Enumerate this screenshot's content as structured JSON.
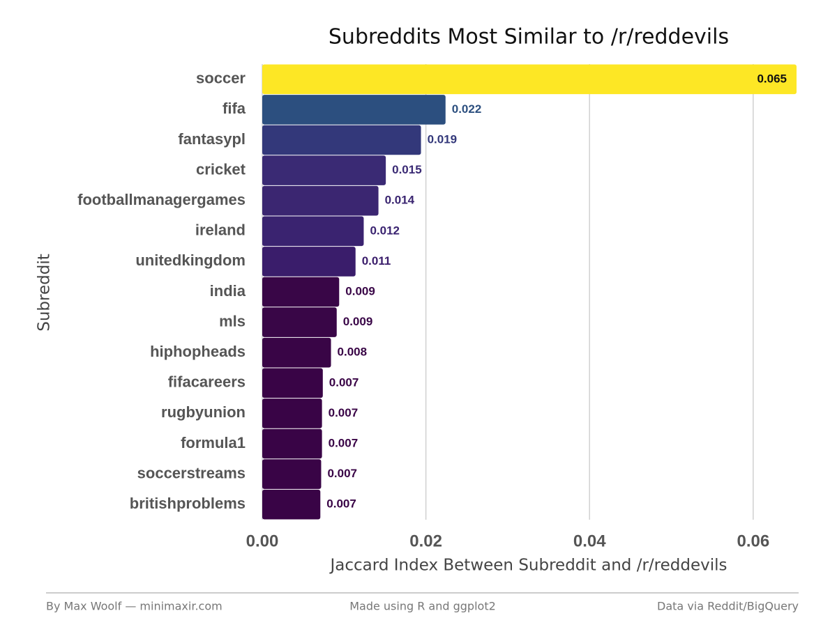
{
  "chart_data": {
    "type": "barh",
    "title": "Subreddits Most Similar to /r/reddevils",
    "x_label": "Jaccard Index Between Subreddit and /r/reddevils",
    "y_label": "Subreddit",
    "categories": [
      "soccer",
      "fifa",
      "fantasypl",
      "cricket",
      "footballmanagergames",
      "ireland",
      "unitedkingdom",
      "india",
      "mls",
      "hiphopheads",
      "fifacareers",
      "rugbyunion",
      "formula1",
      "soccerstreams",
      "britishproblems"
    ],
    "values": [
      0.0653,
      0.0224,
      0.0194,
      0.0151,
      0.0142,
      0.0124,
      0.0114,
      0.0094,
      0.0091,
      0.0084,
      0.0074,
      0.0073,
      0.0073,
      0.0072,
      0.0071
    ],
    "value_labels": [
      "0.065",
      "0.022",
      "0.019",
      "0.015",
      "0.014",
      "0.012",
      "0.011",
      "0.009",
      "0.009",
      "0.008",
      "0.007",
      "0.007",
      "0.007",
      "0.007",
      "0.007"
    ],
    "colors": [
      "#fde725",
      "#2c4f7f",
      "#33387a",
      "#3a2a74",
      "#3b2671",
      "#3a2370",
      "#3a1d6b",
      "#390647",
      "#390647",
      "#390546",
      "#390446",
      "#390446",
      "#390446",
      "#390446",
      "#390446"
    ],
    "xlim": [
      0,
      0.0653
    ],
    "xticks": [
      {
        "value": 0,
        "label": "0.00"
      },
      {
        "value": 0.02,
        "label": "0.02"
      },
      {
        "value": 0.04,
        "label": "0.04"
      },
      {
        "value": 0.06,
        "label": "0.06"
      }
    ],
    "grid": true,
    "footer_left": "By Max Woolf — minimaxir.com",
    "footer_center": "Made using R and ggplot2",
    "footer_right": "Data via Reddit/BigQuery"
  }
}
